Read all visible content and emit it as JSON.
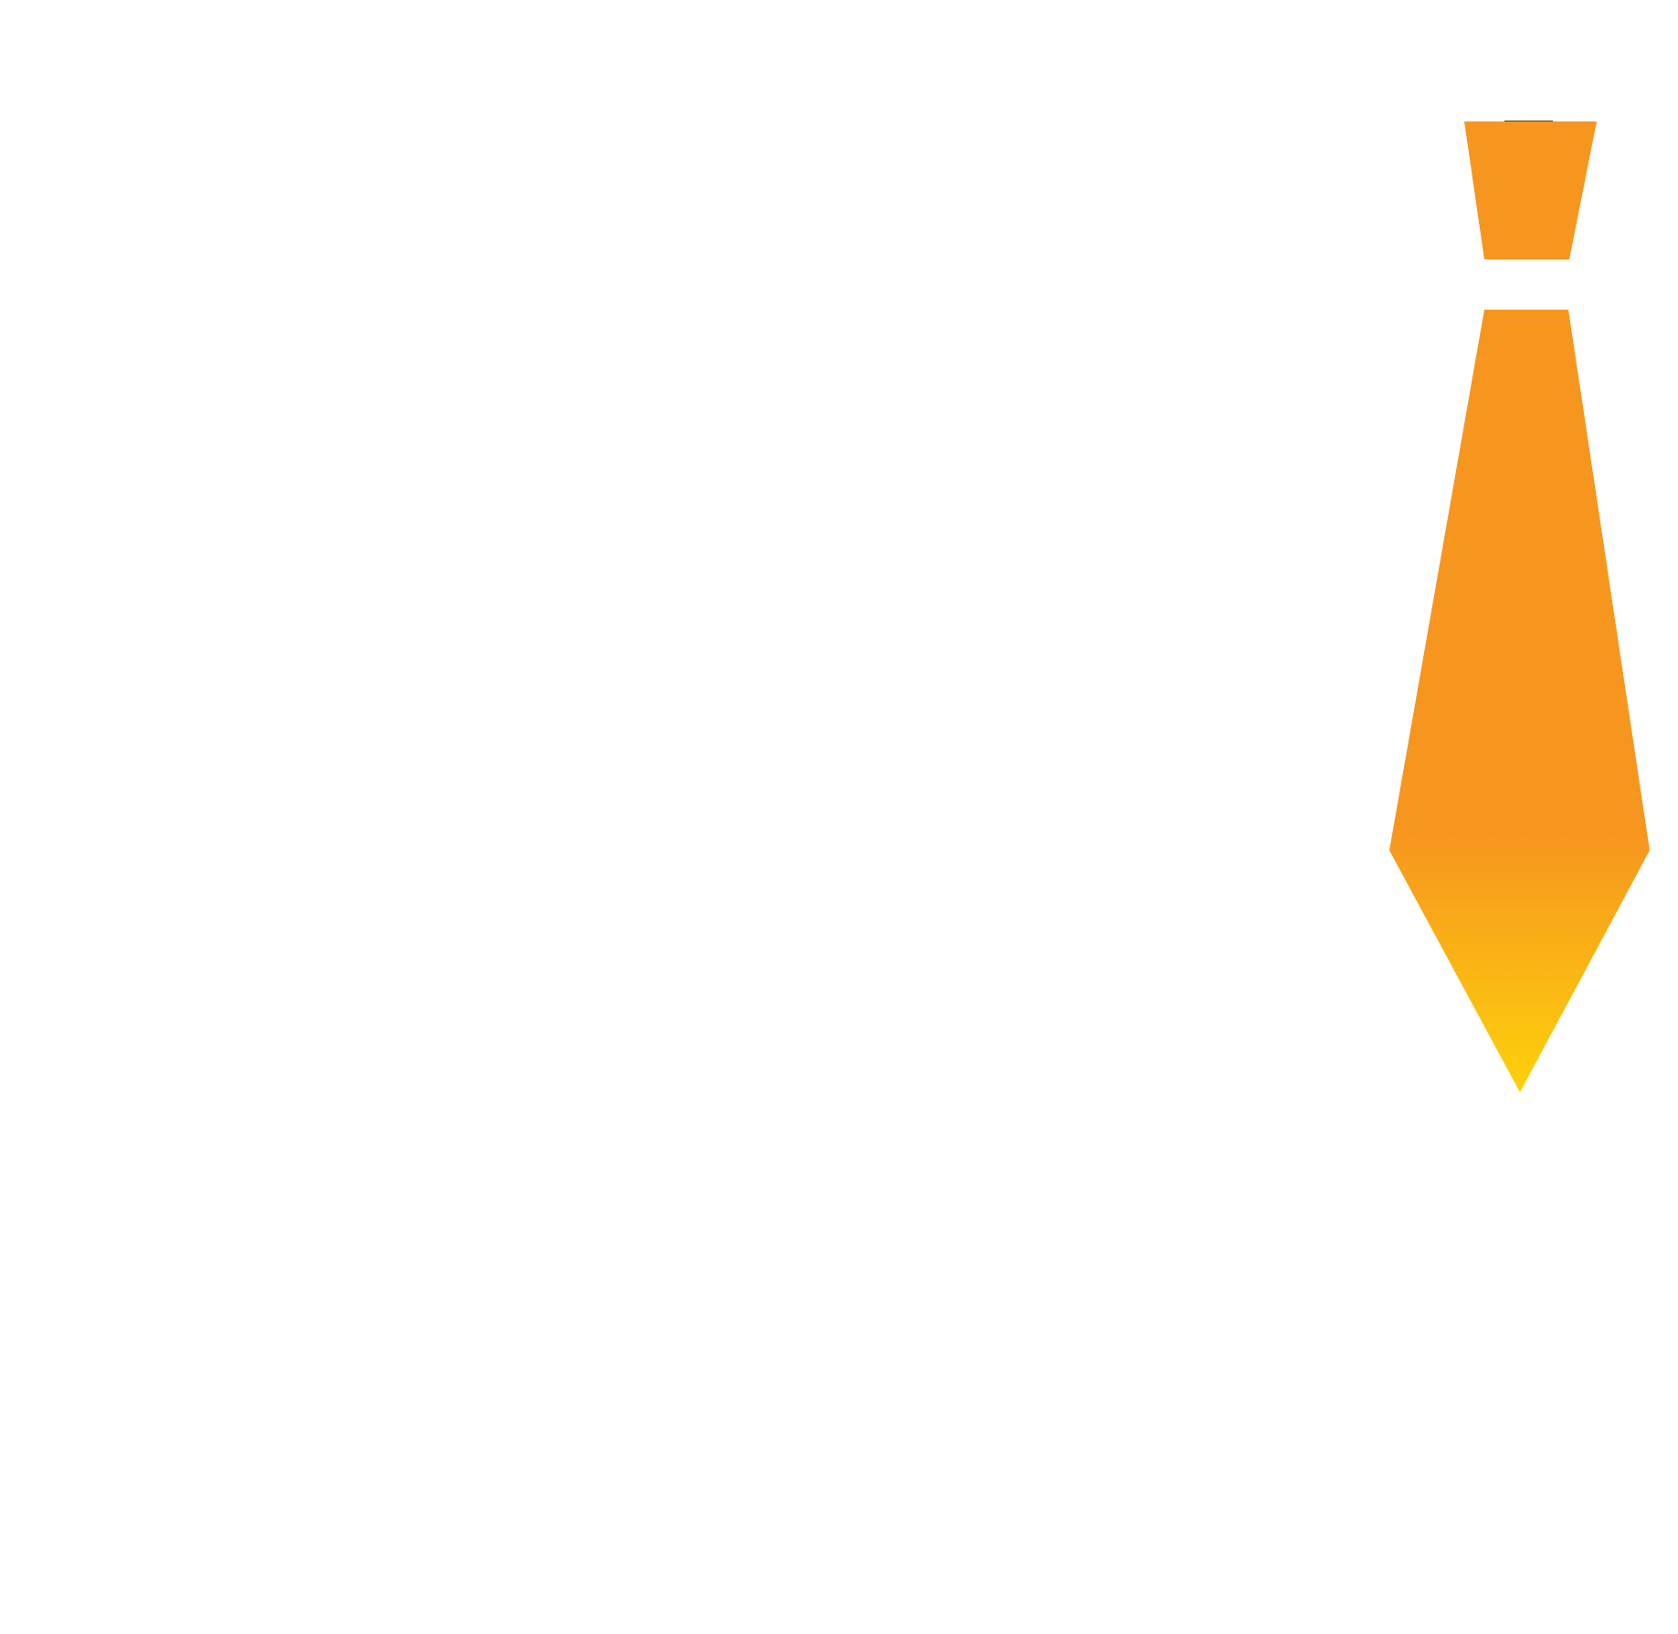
{
  "graphic": {
    "subject": "necktie",
    "icon": "necktie-icon",
    "colors": {
      "background": "#ffffff",
      "tie_main": "#f6961f",
      "tie_tip": "#fdd10a",
      "knot_edge": "#5a3a10"
    }
  }
}
